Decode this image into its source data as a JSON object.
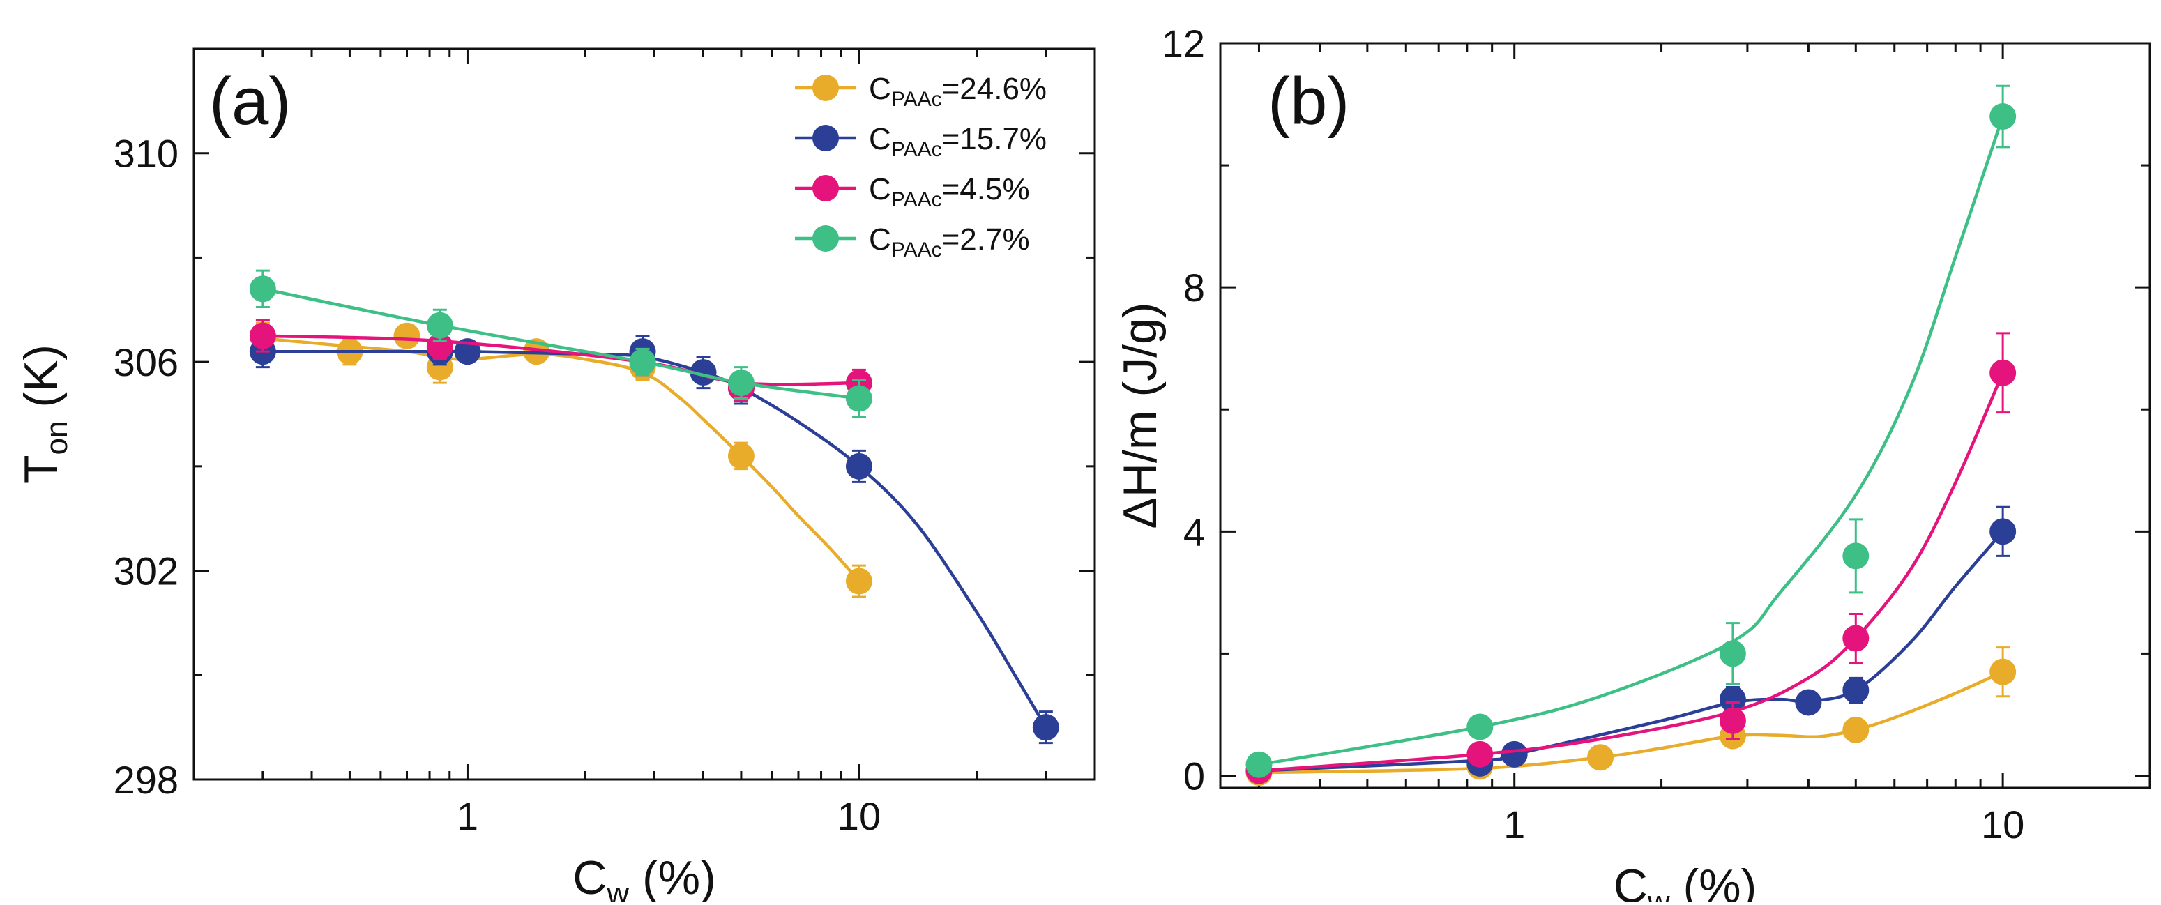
{
  "chart_data": [
    {
      "id": "a",
      "type": "line",
      "panel_label": "(a)",
      "xscale": "log",
      "xlim": [
        0.2,
        40
      ],
      "ylim": [
        298,
        312
      ],
      "xticks": [
        1,
        10
      ],
      "xtick_labels": [
        "1",
        "10"
      ],
      "yticks": [
        298,
        302,
        306,
        310
      ],
      "ytick_labels": [
        "298",
        "302",
        "306",
        "310"
      ],
      "xlabel": {
        "main": "C",
        "sub": "w",
        "tail": " (%)"
      },
      "ylabel": {
        "main": "T",
        "sub": "on",
        "tail": " (K)"
      },
      "legend": {
        "position": "top-right",
        "entries": [
          {
            "main": "C",
            "sub": "PAAc",
            "tail": "=24.6%",
            "color": "#E8AC2A"
          },
          {
            "main": "C",
            "sub": "PAAc",
            "tail": "=15.7%",
            "color": "#2B3F96"
          },
          {
            "main": "C",
            "sub": "PAAc",
            "tail": "=4.5%",
            "color": "#E5147D"
          },
          {
            "main": "C",
            "sub": "PAAc",
            "tail": "=2.7%",
            "color": "#3DBF86"
          }
        ]
      },
      "series": [
        {
          "name": "CPAAc=24.6%",
          "color": "#E8AC2A",
          "points": [
            [
              0.3,
              306.5
            ],
            [
              0.5,
              306.2
            ],
            [
              0.7,
              306.5
            ],
            [
              0.85,
              305.9
            ],
            [
              1.5,
              306.2
            ],
            [
              2.8,
              305.9
            ],
            [
              5,
              304.2
            ],
            [
              10,
              301.8
            ]
          ],
          "errors": [
            0.25,
            0.25,
            0.2,
            0.3,
            0.2,
            0.25,
            0.25,
            0.3
          ],
          "curve": [
            [
              0.3,
              306.45
            ],
            [
              0.5,
              306.3
            ],
            [
              0.7,
              306.2
            ],
            [
              0.85,
              306.1
            ],
            [
              1,
              306.05
            ],
            [
              1.5,
              306.15
            ],
            [
              2,
              306.05
            ],
            [
              2.8,
              305.8
            ],
            [
              3.5,
              305.3
            ],
            [
              4,
              304.9
            ],
            [
              5,
              304.2
            ],
            [
              6,
              303.6
            ],
            [
              7,
              303.05
            ],
            [
              8.5,
              302.4
            ],
            [
              10,
              301.8
            ]
          ]
        },
        {
          "name": "CPAAc=15.7%",
          "color": "#2B3F96",
          "points": [
            [
              0.3,
              306.2
            ],
            [
              0.85,
              306.2
            ],
            [
              1,
              306.2
            ],
            [
              2.8,
              306.2
            ],
            [
              4,
              305.8
            ],
            [
              5,
              305.5
            ],
            [
              10,
              304.0
            ],
            [
              30,
              299.0
            ]
          ],
          "errors": [
            0.3,
            0.25,
            0.2,
            0.3,
            0.3,
            0.3,
            0.3,
            0.3
          ],
          "curve": [
            [
              0.3,
              306.2
            ],
            [
              0.85,
              306.2
            ],
            [
              1,
              306.2
            ],
            [
              2,
              306.15
            ],
            [
              2.8,
              306.1
            ],
            [
              4,
              305.8
            ],
            [
              5,
              305.5
            ],
            [
              7,
              304.85
            ],
            [
              10,
              304.0
            ],
            [
              14,
              302.9
            ],
            [
              20,
              301.2
            ],
            [
              25,
              300.0
            ],
            [
              30,
              299.0
            ]
          ]
        },
        {
          "name": "CPAAc=4.5%",
          "color": "#E5147D",
          "points": [
            [
              0.3,
              306.5
            ],
            [
              0.85,
              306.3
            ],
            [
              2.8,
              306.0
            ],
            [
              5,
              305.5
            ],
            [
              10,
              305.6
            ]
          ],
          "errors": [
            0.3,
            0.25,
            0.25,
            0.25,
            0.25
          ],
          "curve": [
            [
              0.3,
              306.5
            ],
            [
              0.85,
              306.4
            ],
            [
              2.8,
              306.0
            ],
            [
              5,
              305.6
            ],
            [
              10,
              305.6
            ]
          ]
        },
        {
          "name": "CPAAc=2.7%",
          "color": "#3DBF86",
          "points": [
            [
              0.3,
              307.4
            ],
            [
              0.85,
              306.7
            ],
            [
              2.8,
              306.0
            ],
            [
              5,
              305.6
            ],
            [
              10,
              305.3
            ]
          ],
          "errors": [
            0.35,
            0.3,
            0.25,
            0.3,
            0.35
          ],
          "curve": [
            [
              0.3,
              307.4
            ],
            [
              0.85,
              306.7
            ],
            [
              2.8,
              306.0
            ],
            [
              5,
              305.6
            ],
            [
              10,
              305.3
            ]
          ]
        }
      ]
    },
    {
      "id": "b",
      "type": "line",
      "panel_label": "(b)",
      "xscale": "log",
      "xlim": [
        0.25,
        20
      ],
      "ylim": [
        -0.2,
        12
      ],
      "xticks": [
        1,
        10
      ],
      "xtick_labels": [
        "1",
        "10"
      ],
      "yticks": [
        0,
        4,
        8,
        12
      ],
      "ytick_labels": [
        "0",
        "4",
        "8",
        "12"
      ],
      "xlabel": {
        "main": "C",
        "sub": "w",
        "tail": " (%)"
      },
      "ylabel": {
        "main": "ΔH/m (J/g)",
        "sub": "",
        "tail": ""
      },
      "series": [
        {
          "name": "CPAAc=24.6%",
          "color": "#E8AC2A",
          "points": [
            [
              0.3,
              0.05
            ],
            [
              0.85,
              0.15
            ],
            [
              1.5,
              0.3
            ],
            [
              2.8,
              0.65
            ],
            [
              5,
              0.75
            ],
            [
              10,
              1.7
            ]
          ],
          "errors": [
            0.1,
            0.1,
            0.1,
            0.15,
            0.15,
            0.4
          ],
          "curve": [
            [
              0.3,
              0.05
            ],
            [
              0.85,
              0.12
            ],
            [
              1.5,
              0.3
            ],
            [
              2,
              0.45
            ],
            [
              2.8,
              0.65
            ],
            [
              3.5,
              0.66
            ],
            [
              4.2,
              0.64
            ],
            [
              5,
              0.75
            ],
            [
              6,
              0.95
            ],
            [
              8,
              1.35
            ],
            [
              10,
              1.7
            ]
          ]
        },
        {
          "name": "CPAAc=15.7%",
          "color": "#2B3F96",
          "points": [
            [
              0.3,
              0.08
            ],
            [
              0.85,
              0.2
            ],
            [
              1,
              0.35
            ],
            [
              2.8,
              1.25
            ],
            [
              4,
              1.2
            ],
            [
              5,
              1.4
            ],
            [
              10,
              4.0
            ]
          ],
          "errors": [
            0.1,
            0.15,
            0.15,
            0.2,
            0.15,
            0.2,
            0.4
          ],
          "curve": [
            [
              0.3,
              0.08
            ],
            [
              0.85,
              0.25
            ],
            [
              1,
              0.35
            ],
            [
              2,
              0.9
            ],
            [
              2.8,
              1.2
            ],
            [
              3.5,
              1.25
            ],
            [
              4,
              1.22
            ],
            [
              5,
              1.4
            ],
            [
              6.5,
              2.2
            ],
            [
              8,
              3.1
            ],
            [
              10,
              4.0
            ]
          ]
        },
        {
          "name": "CPAAc=4.5%",
          "color": "#E5147D",
          "points": [
            [
              0.3,
              0.08
            ],
            [
              0.85,
              0.35
            ],
            [
              2.8,
              0.9
            ],
            [
              5,
              2.25
            ],
            [
              10,
              6.6
            ]
          ],
          "errors": [
            0.1,
            0.15,
            0.3,
            0.4,
            0.65
          ],
          "curve": [
            [
              0.3,
              0.08
            ],
            [
              0.85,
              0.35
            ],
            [
              1.5,
              0.6
            ],
            [
              2.8,
              1.05
            ],
            [
              4,
              1.6
            ],
            [
              5,
              2.25
            ],
            [
              6.5,
              3.4
            ],
            [
              8,
              4.8
            ],
            [
              10,
              6.6
            ]
          ]
        },
        {
          "name": "CPAAc=2.7%",
          "color": "#3DBF86",
          "points": [
            [
              0.3,
              0.18
            ],
            [
              0.85,
              0.8
            ],
            [
              2.8,
              2.0
            ],
            [
              5,
              3.6
            ],
            [
              10,
              10.8
            ]
          ],
          "errors": [
            0.1,
            0.15,
            0.5,
            0.6,
            0.5
          ],
          "curve": [
            [
              0.3,
              0.18
            ],
            [
              0.85,
              0.8
            ],
            [
              1.5,
              1.3
            ],
            [
              2.8,
              2.2
            ],
            [
              3.5,
              3.0
            ],
            [
              5,
              4.6
            ],
            [
              6.5,
              6.4
            ],
            [
              8,
              8.5
            ],
            [
              10,
              10.8
            ]
          ]
        }
      ]
    }
  ]
}
